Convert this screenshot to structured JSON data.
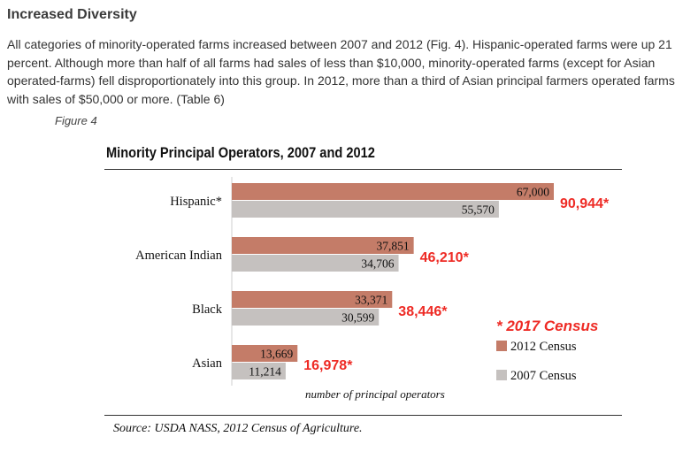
{
  "heading": "Increased Diversity",
  "paragraph": "All categories of minority-operated farms increased between 2007 and 2012 (Fig. 4). Hispanic-operated farms were up 21 percent. Although more than half of all farms had sales of less than $10,000, minority-operated farms (except for Asian operated-farms) fell disproportionately into this group. In 2012, more than a third of Asian principal farmers operated farms with sales of $50,000 or more. (Table 6)",
  "figure_label": "Figure 4",
  "source": "Source: USDA NASS, 2012 Census of Agriculture.",
  "chart_data": {
    "type": "bar",
    "orientation": "horizontal",
    "title": "Minority Principal Operators, 2007 and 2012",
    "xlabel": "number of principal operators",
    "ylabel": "",
    "xlim": [
      0,
      67000
    ],
    "grid": false,
    "categories": [
      "Hispanic*",
      "American Indian",
      "Black",
      "Asian"
    ],
    "series": [
      {
        "name": "2012 Census",
        "color": "#c47c68",
        "values": [
          67000,
          37851,
          33371,
          13669
        ],
        "labels": [
          "67,000",
          "37,851",
          "33,371",
          "13,669"
        ]
      },
      {
        "name": "2007 Census",
        "color": "#c5c1bf",
        "values": [
          55570,
          34706,
          30599,
          11214
        ],
        "labels": [
          "55,570",
          "34,706",
          "30,599",
          "11,214"
        ]
      }
    ],
    "census_2017": {
      "name": "* 2017 Census",
      "color": "#ee2b25",
      "labels": [
        "90,944*",
        "46,210*",
        "38,446*",
        "16,978*"
      ]
    },
    "legend_position": "bottom-right"
  }
}
